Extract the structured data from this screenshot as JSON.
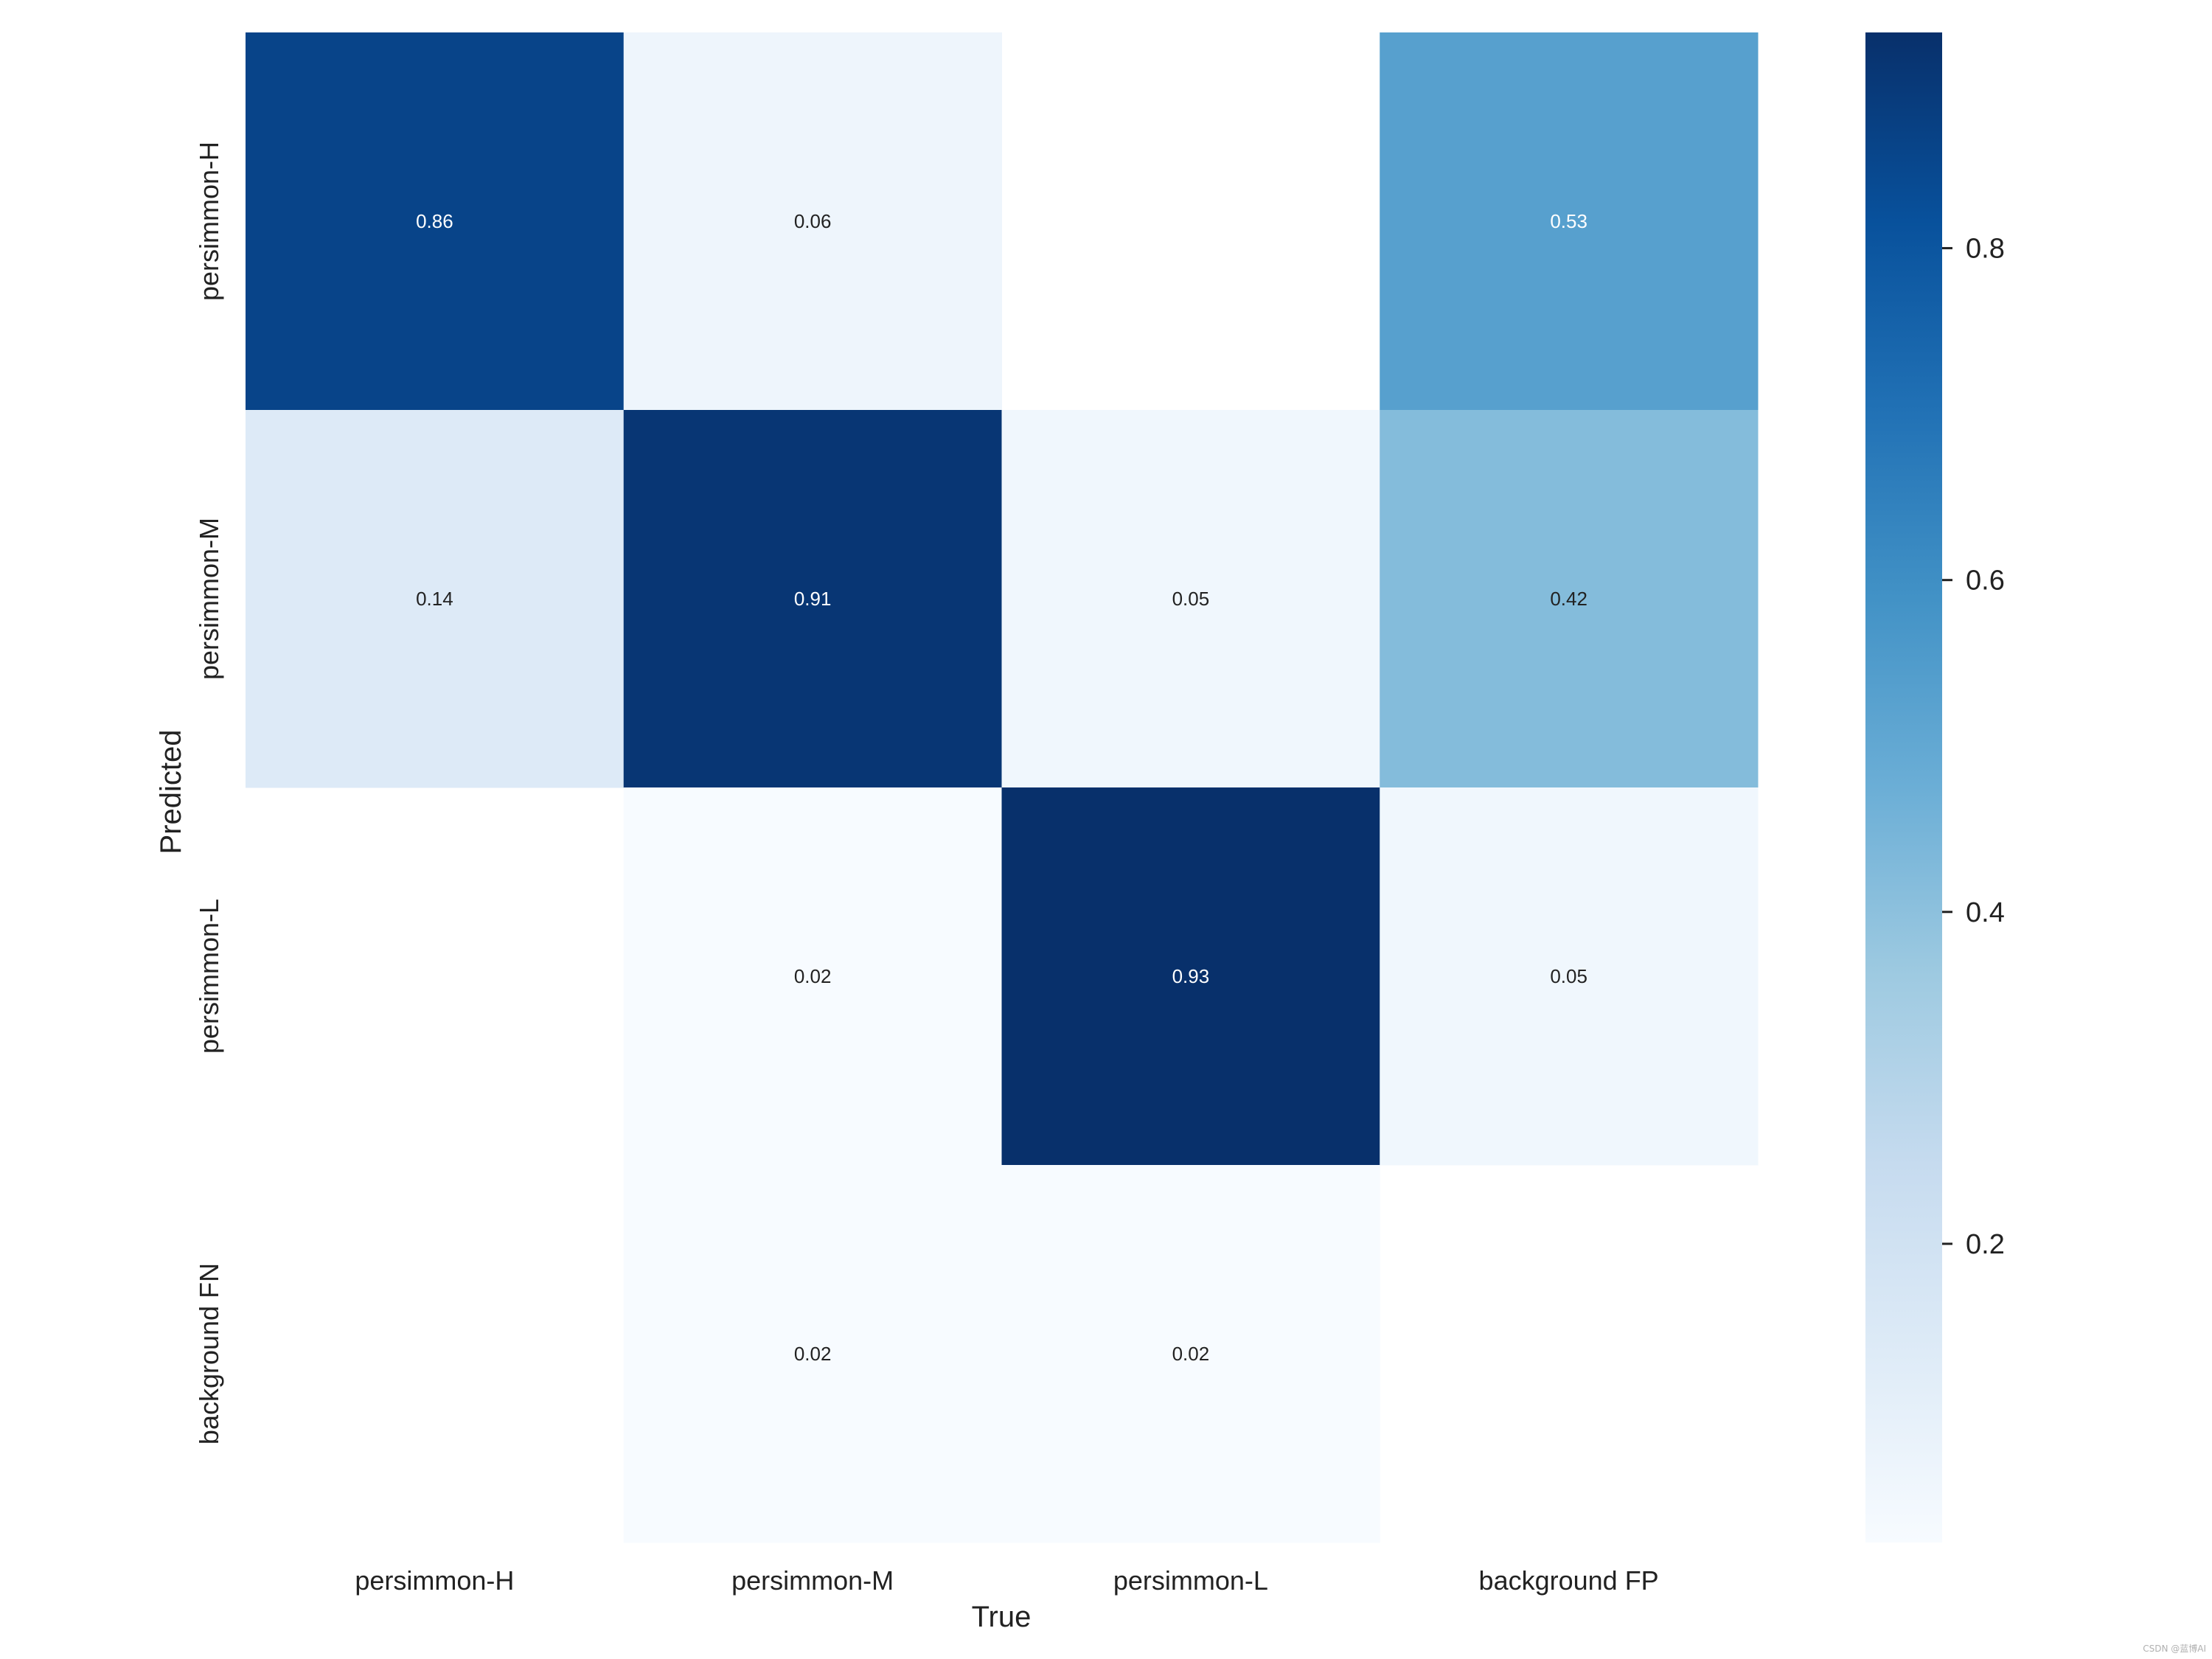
{
  "chart_data": {
    "type": "heatmap",
    "title": "",
    "xlabel": "True",
    "ylabel": "Predicted",
    "x_categories": [
      "persimmon-H",
      "persimmon-M",
      "persimmon-L",
      "background FP"
    ],
    "y_categories": [
      "persimmon-H",
      "persimmon-M",
      "persimmon-L",
      "background FN"
    ],
    "values": [
      [
        0.86,
        0.06,
        null,
        0.53
      ],
      [
        0.14,
        0.91,
        0.05,
        0.42
      ],
      [
        null,
        0.02,
        0.93,
        0.05
      ],
      [
        null,
        0.02,
        0.02,
        null
      ]
    ],
    "colormap": "Blues",
    "vmin": 0.02,
    "vmax": 0.93,
    "colorbar_ticks": [
      0.2,
      0.4,
      0.6,
      0.8
    ],
    "grid": false,
    "colorbar_position": "right"
  },
  "watermark": "CSDN @蓝博AI"
}
